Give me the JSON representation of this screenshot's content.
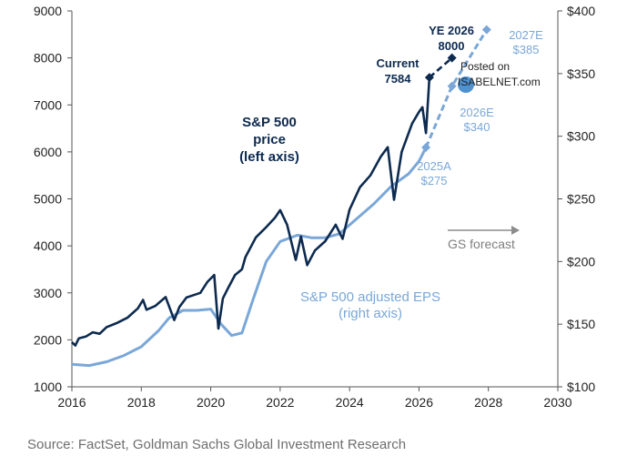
{
  "chart_data": {
    "type": "line",
    "x_ticks": [
      "2016",
      "2018",
      "2020",
      "2022",
      "2024",
      "2026",
      "2028",
      "2030"
    ],
    "xlim": [
      2016,
      2030
    ],
    "y_left_ticks": [
      "1000",
      "2000",
      "3000",
      "4000",
      "5000",
      "6000",
      "7000",
      "8000",
      "9000"
    ],
    "y_left_lim": [
      1000,
      9000
    ],
    "y_right_ticks": [
      "$100",
      "$150",
      "$200",
      "$250",
      "$300",
      "$350",
      "$400"
    ],
    "y_right_lim": [
      100,
      400
    ],
    "grid": false,
    "series": [
      {
        "name": "S&P 500 price (left axis)",
        "label_lines": [
          "S&P 500",
          "price",
          "(left axis)"
        ],
        "axis": "left",
        "color": "#0d2a4f",
        "points": [
          [
            2016.0,
            1950
          ],
          [
            2016.1,
            1880
          ],
          [
            2016.2,
            2030
          ],
          [
            2016.4,
            2070
          ],
          [
            2016.6,
            2160
          ],
          [
            2016.8,
            2130
          ],
          [
            2017.0,
            2270
          ],
          [
            2017.3,
            2360
          ],
          [
            2017.6,
            2470
          ],
          [
            2017.9,
            2670
          ],
          [
            2018.05,
            2850
          ],
          [
            2018.15,
            2640
          ],
          [
            2018.4,
            2720
          ],
          [
            2018.7,
            2910
          ],
          [
            2018.95,
            2420
          ],
          [
            2019.1,
            2700
          ],
          [
            2019.3,
            2900
          ],
          [
            2019.5,
            2950
          ],
          [
            2019.7,
            3000
          ],
          [
            2019.9,
            3230
          ],
          [
            2020.1,
            3380
          ],
          [
            2020.22,
            2240
          ],
          [
            2020.35,
            2880
          ],
          [
            2020.5,
            3100
          ],
          [
            2020.7,
            3380
          ],
          [
            2020.9,
            3500
          ],
          [
            2021.0,
            3760
          ],
          [
            2021.3,
            4180
          ],
          [
            2021.6,
            4400
          ],
          [
            2021.85,
            4600
          ],
          [
            2022.0,
            4760
          ],
          [
            2022.2,
            4450
          ],
          [
            2022.45,
            3700
          ],
          [
            2022.6,
            4200
          ],
          [
            2022.78,
            3590
          ],
          [
            2023.0,
            3900
          ],
          [
            2023.3,
            4100
          ],
          [
            2023.6,
            4450
          ],
          [
            2023.8,
            4150
          ],
          [
            2024.0,
            4770
          ],
          [
            2024.3,
            5250
          ],
          [
            2024.6,
            5500
          ],
          [
            2024.9,
            5900
          ],
          [
            2025.1,
            6100
          ],
          [
            2025.28,
            4980
          ],
          [
            2025.5,
            6000
          ],
          [
            2025.8,
            6600
          ],
          [
            2026.0,
            6850
          ],
          [
            2026.1,
            6950
          ],
          [
            2026.2,
            6400
          ],
          [
            2026.3,
            7584
          ]
        ]
      },
      {
        "name": "S&P 500 adjusted EPS (right axis)",
        "label_lines": [
          "S&P 500 adjusted EPS",
          "(right axis)"
        ],
        "axis": "right",
        "color": "#7aa7d8",
        "points": [
          [
            2016.0,
            118
          ],
          [
            2016.5,
            117
          ],
          [
            2017.0,
            120
          ],
          [
            2017.5,
            125
          ],
          [
            2018.0,
            132
          ],
          [
            2018.5,
            145
          ],
          [
            2018.8,
            155
          ],
          [
            2019.2,
            161
          ],
          [
            2019.6,
            161
          ],
          [
            2020.0,
            162
          ],
          [
            2020.3,
            150
          ],
          [
            2020.6,
            141
          ],
          [
            2020.9,
            143
          ],
          [
            2021.2,
            168
          ],
          [
            2021.6,
            200
          ],
          [
            2022.0,
            216
          ],
          [
            2022.5,
            221
          ],
          [
            2022.9,
            219
          ],
          [
            2023.3,
            219
          ],
          [
            2023.7,
            222
          ],
          [
            2024.2,
            234
          ],
          [
            2024.7,
            246
          ],
          [
            2025.2,
            260
          ],
          [
            2025.7,
            270
          ],
          [
            2026.0,
            280
          ],
          [
            2026.2,
            291
          ]
        ]
      }
    ],
    "forecast": {
      "price": [
        [
          2026.3,
          7584
        ],
        [
          2026.95,
          8000
        ]
      ],
      "eps": [
        [
          2026.2,
          291
        ],
        [
          2026.95,
          340
        ],
        [
          2027.95,
          385
        ]
      ]
    },
    "annotations": {
      "current": [
        "Current",
        "7584"
      ],
      "ye2026": [
        "YE 2026",
        "8000"
      ],
      "eps_2025a": [
        "2025A",
        "$275"
      ],
      "eps_2026e": [
        "2026E",
        "$340"
      ],
      "eps_2027e": [
        "2027E",
        "$385"
      ],
      "gs_forecast": "GS forecast"
    },
    "source": "Source: FactSet, Goldman Sachs Global Investment Research",
    "watermark": [
      "Posted on",
      "ISABELNET.com"
    ]
  }
}
